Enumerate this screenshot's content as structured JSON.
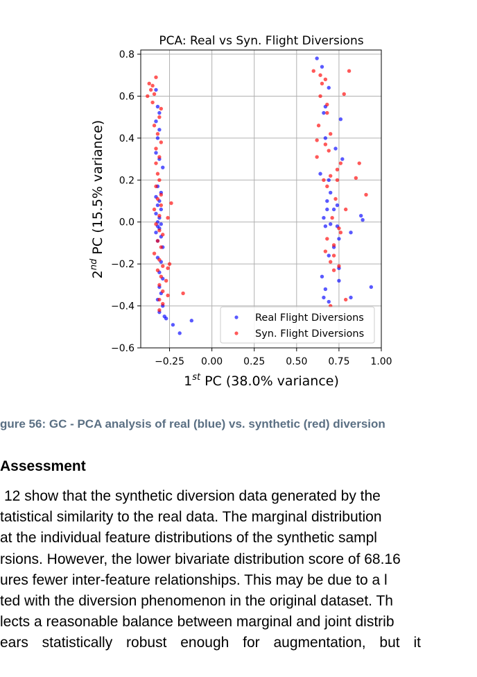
{
  "chart_data": {
    "type": "scatter",
    "title": "PCA: Real vs Syn. Flight Diversions",
    "xlabel": "1st PC (38.0% variance)",
    "xlabel_main": "1",
    "xlabel_sup": "st",
    "xlabel_rest": " PC (38.0% variance)",
    "ylabel": "2nd PC (15.5% variance)",
    "ylabel_main": "2",
    "ylabel_sup": "nd",
    "ylabel_rest": " PC (15.5% variance)",
    "xlim": [
      -0.42,
      1.0
    ],
    "ylim": [
      -0.6,
      0.82
    ],
    "xticks": [
      -0.25,
      0.0,
      0.25,
      0.5,
      0.75,
      1.0
    ],
    "xtick_labels": [
      "−0.25",
      "0.00",
      "0.25",
      "0.50",
      "0.75",
      "1.00"
    ],
    "yticks": [
      -0.6,
      -0.4,
      -0.2,
      0.0,
      0.2,
      0.4,
      0.6,
      0.8
    ],
    "ytick_labels": [
      "−0.6",
      "−0.4",
      "−0.2",
      "0.0",
      "0.2",
      "0.4",
      "0.6",
      "0.8"
    ],
    "grid": true,
    "legend_position": "lower-right",
    "series": [
      {
        "name": "Real Flight Diversions",
        "color": "#0000ff",
        "points": [
          [
            -0.33,
            0.63
          ],
          [
            -0.32,
            0.55
          ],
          [
            -0.31,
            0.52
          ],
          [
            -0.33,
            0.48
          ],
          [
            -0.31,
            0.44
          ],
          [
            -0.32,
            0.4
          ],
          [
            -0.33,
            0.33
          ],
          [
            -0.31,
            0.3
          ],
          [
            -0.29,
            0.26
          ],
          [
            -0.32,
            0.17
          ],
          [
            -0.3,
            0.14
          ],
          [
            -0.33,
            0.12
          ],
          [
            -0.31,
            0.1
          ],
          [
            -0.32,
            0.08
          ],
          [
            -0.3,
            0.06
          ],
          [
            -0.33,
            0.04
          ],
          [
            -0.31,
            0.02
          ],
          [
            -0.32,
            0.0
          ],
          [
            -0.3,
            -0.01
          ],
          [
            -0.32,
            -0.02
          ],
          [
            -0.31,
            -0.03
          ],
          [
            -0.33,
            -0.05
          ],
          [
            -0.3,
            -0.07
          ],
          [
            -0.32,
            -0.09
          ],
          [
            -0.29,
            -0.12
          ],
          [
            -0.32,
            -0.17
          ],
          [
            -0.3,
            -0.19
          ],
          [
            -0.31,
            -0.24
          ],
          [
            -0.29,
            -0.27
          ],
          [
            -0.31,
            -0.31
          ],
          [
            -0.3,
            -0.34
          ],
          [
            -0.32,
            -0.37
          ],
          [
            -0.29,
            -0.4
          ],
          [
            -0.31,
            -0.43
          ],
          [
            -0.28,
            -0.45
          ],
          [
            -0.27,
            -0.46
          ],
          [
            -0.23,
            -0.49
          ],
          [
            -0.19,
            -0.53
          ],
          [
            -0.12,
            -0.47
          ],
          [
            0.62,
            0.78
          ],
          [
            0.65,
            0.74
          ],
          [
            0.69,
            0.64
          ],
          [
            0.67,
            0.55
          ],
          [
            0.66,
            0.52
          ],
          [
            0.76,
            0.49
          ],
          [
            0.67,
            0.4
          ],
          [
            0.73,
            0.35
          ],
          [
            0.77,
            0.3
          ],
          [
            0.64,
            0.23
          ],
          [
            0.69,
            0.2
          ],
          [
            0.7,
            0.14
          ],
          [
            0.68,
            0.1
          ],
          [
            0.74,
            0.08
          ],
          [
            0.72,
            0.06
          ],
          [
            0.68,
            0.06
          ],
          [
            0.66,
            0.02
          ],
          [
            0.88,
            0.03
          ],
          [
            0.89,
            0.01
          ],
          [
            0.7,
            -0.01
          ],
          [
            0.67,
            -0.02
          ],
          [
            0.74,
            -0.02
          ],
          [
            0.82,
            -0.05
          ],
          [
            0.75,
            -0.08
          ],
          [
            0.72,
            -0.12
          ],
          [
            0.69,
            -0.16
          ],
          [
            0.75,
            -0.22
          ],
          [
            0.75,
            -0.28
          ],
          [
            0.65,
            -0.26
          ],
          [
            0.67,
            -0.32
          ],
          [
            0.66,
            -0.36
          ],
          [
            0.69,
            -0.38
          ],
          [
            0.82,
            -0.36
          ],
          [
            0.94,
            -0.31
          ]
        ]
      },
      {
        "name": "Syn. Flight Diversions",
        "color": "#ff0000",
        "points": [
          [
            -0.37,
            0.66
          ],
          [
            -0.35,
            0.65
          ],
          [
            -0.33,
            0.69
          ],
          [
            -0.36,
            0.63
          ],
          [
            -0.34,
            0.61
          ],
          [
            -0.38,
            0.6
          ],
          [
            -0.35,
            0.57
          ],
          [
            -0.3,
            0.54
          ],
          [
            -0.31,
            0.5
          ],
          [
            -0.34,
            0.46
          ],
          [
            -0.32,
            0.42
          ],
          [
            -0.3,
            0.38
          ],
          [
            -0.33,
            0.35
          ],
          [
            -0.31,
            0.31
          ],
          [
            -0.33,
            0.28
          ],
          [
            -0.32,
            0.23
          ],
          [
            -0.31,
            0.2
          ],
          [
            -0.33,
            0.17
          ],
          [
            -0.3,
            0.13
          ],
          [
            -0.32,
            0.11
          ],
          [
            -0.3,
            0.08
          ],
          [
            -0.24,
            0.09
          ],
          [
            -0.34,
            0.06
          ],
          [
            -0.31,
            0.03
          ],
          [
            -0.26,
            0.02
          ],
          [
            -0.33,
            -0.01
          ],
          [
            -0.31,
            -0.04
          ],
          [
            -0.29,
            -0.06
          ],
          [
            -0.32,
            -0.09
          ],
          [
            -0.3,
            -0.12
          ],
          [
            -0.34,
            -0.15
          ],
          [
            -0.31,
            -0.18
          ],
          [
            -0.29,
            -0.21
          ],
          [
            -0.32,
            -0.23
          ],
          [
            -0.25,
            -0.2
          ],
          [
            -0.26,
            -0.22
          ],
          [
            -0.3,
            -0.26
          ],
          [
            -0.27,
            -0.28
          ],
          [
            -0.31,
            -0.3
          ],
          [
            -0.29,
            -0.33
          ],
          [
            -0.26,
            -0.35
          ],
          [
            -0.31,
            -0.37
          ],
          [
            -0.29,
            -0.39
          ],
          [
            -0.31,
            -0.42
          ],
          [
            -0.17,
            -0.34
          ],
          [
            0.6,
            0.72
          ],
          [
            0.64,
            0.7
          ],
          [
            0.67,
            0.68
          ],
          [
            0.65,
            0.66
          ],
          [
            0.81,
            0.72
          ],
          [
            0.78,
            0.61
          ],
          [
            0.64,
            0.6
          ],
          [
            0.68,
            0.56
          ],
          [
            0.68,
            0.52
          ],
          [
            0.63,
            0.46
          ],
          [
            0.7,
            0.42
          ],
          [
            0.62,
            0.39
          ],
          [
            0.67,
            0.37
          ],
          [
            0.69,
            0.34
          ],
          [
            0.62,
            0.31
          ],
          [
            0.76,
            0.28
          ],
          [
            0.87,
            0.28
          ],
          [
            0.74,
            0.25
          ],
          [
            0.7,
            0.22
          ],
          [
            0.66,
            0.2
          ],
          [
            0.74,
            0.2
          ],
          [
            0.85,
            0.21
          ],
          [
            0.91,
            0.13
          ],
          [
            0.68,
            0.17
          ],
          [
            0.73,
            0.11
          ],
          [
            0.79,
            0.06
          ],
          [
            0.71,
            0.02
          ],
          [
            0.75,
            -0.03
          ],
          [
            0.76,
            -0.05
          ],
          [
            0.68,
            -0.08
          ],
          [
            0.72,
            -0.11
          ],
          [
            0.67,
            -0.14
          ],
          [
            0.72,
            -0.16
          ],
          [
            0.7,
            -0.19
          ],
          [
            0.75,
            -0.21
          ],
          [
            0.72,
            -0.23
          ],
          [
            0.79,
            -0.37
          ],
          [
            0.7,
            -0.4
          ]
        ]
      }
    ]
  },
  "caption": "gure 56: GC - PCA analysis of real (blue) vs. synthetic (red) diversion",
  "section_heading": "Assessment",
  "body_lines": [
    "12 show that the synthetic diversion data generated by the",
    "tatistical similarity to the real data. The marginal distribution",
    "at the individual feature distributions of the synthetic sampl",
    "rsions. However, the lower bivariate distribution score of 68.16",
    "ures fewer inter-feature relationships. This may be due to a l",
    "ted with the diversion phenomenon in the original dataset. Th",
    "lects a reasonable balance between marginal and joint distrib",
    "ears statistically robust enough for augmentation, but it"
  ]
}
